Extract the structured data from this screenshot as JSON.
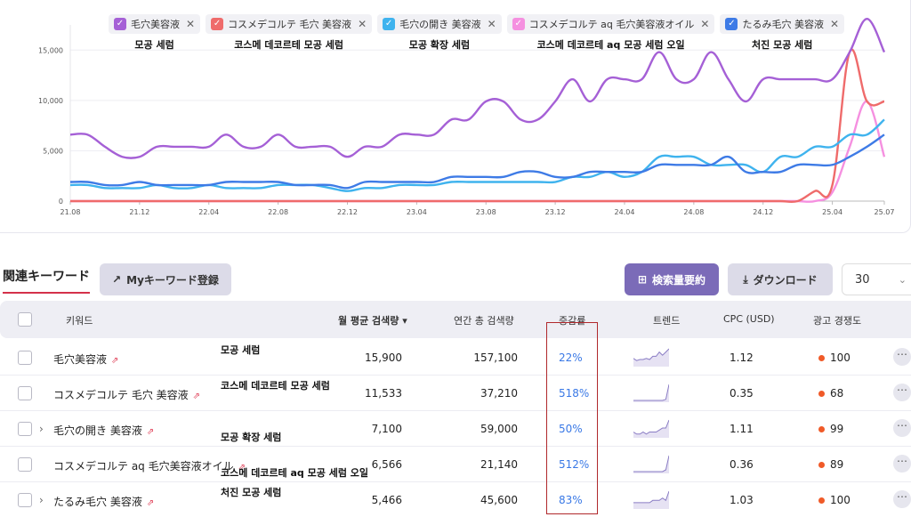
{
  "legend": [
    {
      "label": "毛穴美容液",
      "color": "#a560d6",
      "note": "모공 세럼"
    },
    {
      "label": "コスメデコルテ 毛穴 美容液",
      "color": "#ef6b6b",
      "note": "코스메 데코르테 모공 세럼"
    },
    {
      "label": "毛穴の開き 美容液",
      "color": "#3fb3ee",
      "note": "모공 확장 세럼"
    },
    {
      "label": "コスメデコルテ aq 毛穴美容液オイル",
      "color": "#f590e0",
      "note": "코스메 데코르테 aq 모공 세럼 오일"
    },
    {
      "label": "たるみ毛穴 美容液",
      "color": "#3e7be6",
      "note": "처진 모공 세럼"
    }
  ],
  "chart_data": {
    "type": "line",
    "x": [
      "21.08",
      "21.09",
      "21.10",
      "21.11",
      "21.12",
      "22.01",
      "22.02",
      "22.03",
      "22.04",
      "22.05",
      "22.06",
      "22.07",
      "22.08",
      "22.09",
      "22.10",
      "22.11",
      "22.12",
      "23.01",
      "23.02",
      "23.03",
      "23.04",
      "23.05",
      "23.06",
      "23.07",
      "23.08",
      "23.09",
      "23.10",
      "23.11",
      "23.12",
      "24.01",
      "24.02",
      "24.03",
      "24.04",
      "24.05",
      "24.06",
      "24.07",
      "24.08",
      "24.09",
      "24.10",
      "24.11",
      "24.12",
      "25.01",
      "25.02",
      "25.03",
      "25.04",
      "25.05",
      "25.06",
      "25.07"
    ],
    "x_ticks": [
      "21.08",
      "21.12",
      "22.04",
      "22.08",
      "22.12",
      "23.04",
      "23.08",
      "23.12",
      "24.04",
      "24.08",
      "24.12",
      "25.04",
      "25.07"
    ],
    "y_ticks": [
      "0",
      "5,000",
      "10,000",
      "15,000"
    ],
    "ylim": [
      0,
      17500
    ],
    "series": [
      {
        "name": "毛穴美容液",
        "color": "#a560d6",
        "values": [
          6600,
          6600,
          5400,
          4400,
          4400,
          5400,
          5400,
          5400,
          5400,
          6600,
          5400,
          5400,
          6600,
          5400,
          5400,
          5400,
          4400,
          5400,
          5400,
          6600,
          6600,
          6600,
          8100,
          8100,
          9900,
          9900,
          8100,
          8100,
          9900,
          12100,
          9900,
          12100,
          12100,
          12100,
          14800,
          12100,
          12100,
          14800,
          12100,
          9900,
          12100,
          12100,
          12100,
          12100,
          12100,
          14800,
          18100,
          14800
        ]
      },
      {
        "name": "コスメデコルテ 毛穴 美容液",
        "color": "#ef6b6b",
        "values": [
          0,
          0,
          0,
          0,
          0,
          0,
          0,
          0,
          0,
          0,
          0,
          0,
          0,
          0,
          0,
          0,
          0,
          0,
          0,
          0,
          0,
          0,
          0,
          0,
          0,
          0,
          0,
          0,
          0,
          0,
          0,
          0,
          0,
          0,
          0,
          0,
          0,
          0,
          0,
          0,
          0,
          0,
          0,
          1000,
          1600,
          14800,
          9900,
          9900
        ]
      },
      {
        "name": "毛穴の開き 美容液",
        "color": "#3fb3ee",
        "values": [
          1600,
          1600,
          1300,
          1300,
          1300,
          1600,
          1300,
          1300,
          1600,
          1300,
          1300,
          1300,
          1600,
          1600,
          1600,
          1300,
          1000,
          1300,
          1300,
          1600,
          1600,
          1600,
          1900,
          1900,
          1900,
          1900,
          1900,
          1900,
          1900,
          2400,
          2400,
          2900,
          2400,
          2900,
          4400,
          4400,
          4400,
          3600,
          3600,
          3600,
          2900,
          4400,
          4400,
          5400,
          5400,
          6600,
          6600,
          8100
        ]
      },
      {
        "name": "コスメデコルテ aq 毛穴美容液オイル",
        "color": "#f590e0",
        "values": [
          0,
          0,
          0,
          0,
          0,
          0,
          0,
          0,
          0,
          0,
          0,
          0,
          0,
          0,
          0,
          0,
          0,
          0,
          0,
          0,
          0,
          0,
          0,
          0,
          0,
          0,
          0,
          0,
          0,
          0,
          0,
          0,
          0,
          0,
          0,
          0,
          0,
          0,
          0,
          0,
          0,
          0,
          0,
          0,
          880,
          5400,
          9900,
          4400
        ]
      },
      {
        "name": "たるみ毛穴 美容液",
        "color": "#3e7be6",
        "values": [
          1900,
          1900,
          1600,
          1600,
          1900,
          1600,
          1600,
          1600,
          1600,
          1900,
          1900,
          1900,
          1900,
          1600,
          1600,
          1600,
          1300,
          1900,
          1900,
          1900,
          1900,
          1900,
          2400,
          2400,
          2400,
          2400,
          2900,
          2900,
          2400,
          2400,
          2900,
          2900,
          2900,
          2900,
          3600,
          3600,
          3600,
          3600,
          4400,
          2900,
          2900,
          2900,
          3600,
          3600,
          3600,
          4400,
          5400,
          6600
        ]
      }
    ]
  },
  "keywords_section": {
    "title": "関連キーワード",
    "my_keyword_button": "Myキーワード登録",
    "summary_button": "検索量要約",
    "download_button": "ダウンロード",
    "page_size": "30"
  },
  "table": {
    "headers": {
      "keyword": "키워드",
      "monthly": "월 평균 검색량",
      "annual": "연간 총 검색량",
      "growth": "증감률",
      "trend": "트렌드",
      "cpc": "CPC (USD)",
      "competition": "광고 경쟁도"
    },
    "rows": [
      {
        "keyword": "毛穴美容液",
        "note": "모공 세럼",
        "monthly": "15,900",
        "annual": "157,100",
        "growth": "22%",
        "trend": [
          6,
          4,
          5,
          5,
          6,
          5,
          8,
          8,
          12,
          9,
          12,
          15
        ],
        "cpc": "1.12",
        "competition": "100",
        "expandable": false
      },
      {
        "keyword": "コスメデコルテ 毛穴 美容液",
        "note": "코스메 데코르테 모공 세럼",
        "monthly": "11,533",
        "annual": "37,210",
        "growth": "518%",
        "trend": [
          0,
          0,
          0,
          0,
          0,
          0,
          0,
          0,
          0,
          0,
          1,
          15
        ],
        "cpc": "0.35",
        "competition": "68",
        "expandable": false
      },
      {
        "keyword": "毛穴の開き 美容液",
        "note": "모공 확장 세럼",
        "monthly": "7,100",
        "annual": "59,000",
        "growth": "50%",
        "trend": [
          2,
          1,
          1,
          2,
          1,
          2,
          2,
          2,
          3,
          4,
          4,
          8
        ],
        "cpc": "1.11",
        "competition": "99",
        "expandable": true
      },
      {
        "keyword": "コスメデコルテ aq 毛穴美容液オイル",
        "note": "코스메 데코르테 aq 모공 세럼 오일",
        "monthly": "6,566",
        "annual": "21,140",
        "growth": "512%",
        "trend": [
          0,
          0,
          0,
          0,
          0,
          0,
          0,
          0,
          0,
          0,
          1,
          9
        ],
        "cpc": "0.36",
        "competition": "89",
        "expandable": false
      },
      {
        "keyword": "たるみ毛穴 美容液",
        "note": "처진 모공 세럼",
        "monthly": "5,466",
        "annual": "45,600",
        "growth": "83%",
        "trend": [
          2,
          2,
          2,
          2,
          2,
          2,
          3,
          3,
          3,
          4,
          3,
          7
        ],
        "cpc": "1.03",
        "competition": "100",
        "expandable": true
      }
    ]
  }
}
